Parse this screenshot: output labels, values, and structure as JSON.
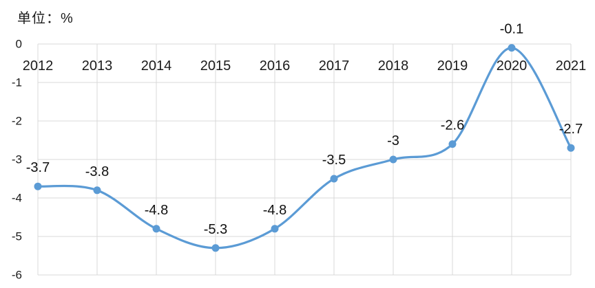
{
  "chart": {
    "unit_label": "单位：%"
  },
  "chart_data": {
    "type": "line",
    "title": "",
    "xlabel": "",
    "ylabel": "",
    "unit": "单位：%",
    "categories": [
      "2012",
      "2013",
      "2014",
      "2015",
      "2016",
      "2017",
      "2018",
      "2019",
      "2020",
      "2021"
    ],
    "series": [
      {
        "name": "",
        "values": [
          -3.7,
          -3.8,
          -4.8,
          -5.3,
          -4.8,
          -3.5,
          -3,
          -2.6,
          -0.1,
          -2.7
        ],
        "data_labels": [
          "-3.7",
          "-3.8",
          "-4.8",
          "-5.3",
          "-4.8",
          "-3.5",
          "-3",
          "-2.6",
          "-0.1",
          "-2.7"
        ]
      }
    ],
    "ylim": [
      -6,
      0
    ],
    "y_ticks": [
      0,
      -1,
      -2,
      -3,
      -4,
      -5,
      -6
    ],
    "y_tick_labels": [
      "0",
      "-1",
      "-2",
      "-3",
      "-4",
      "-5",
      "-6"
    ],
    "grid": true,
    "smooth": true,
    "legend": false,
    "colors": {
      "line": "#5B9BD5",
      "marker": "#5B9BD5",
      "grid": "#D9D9D9",
      "axis_text": "#1a1a1a",
      "data_label_text": "#111111",
      "background": "#ffffff"
    }
  }
}
